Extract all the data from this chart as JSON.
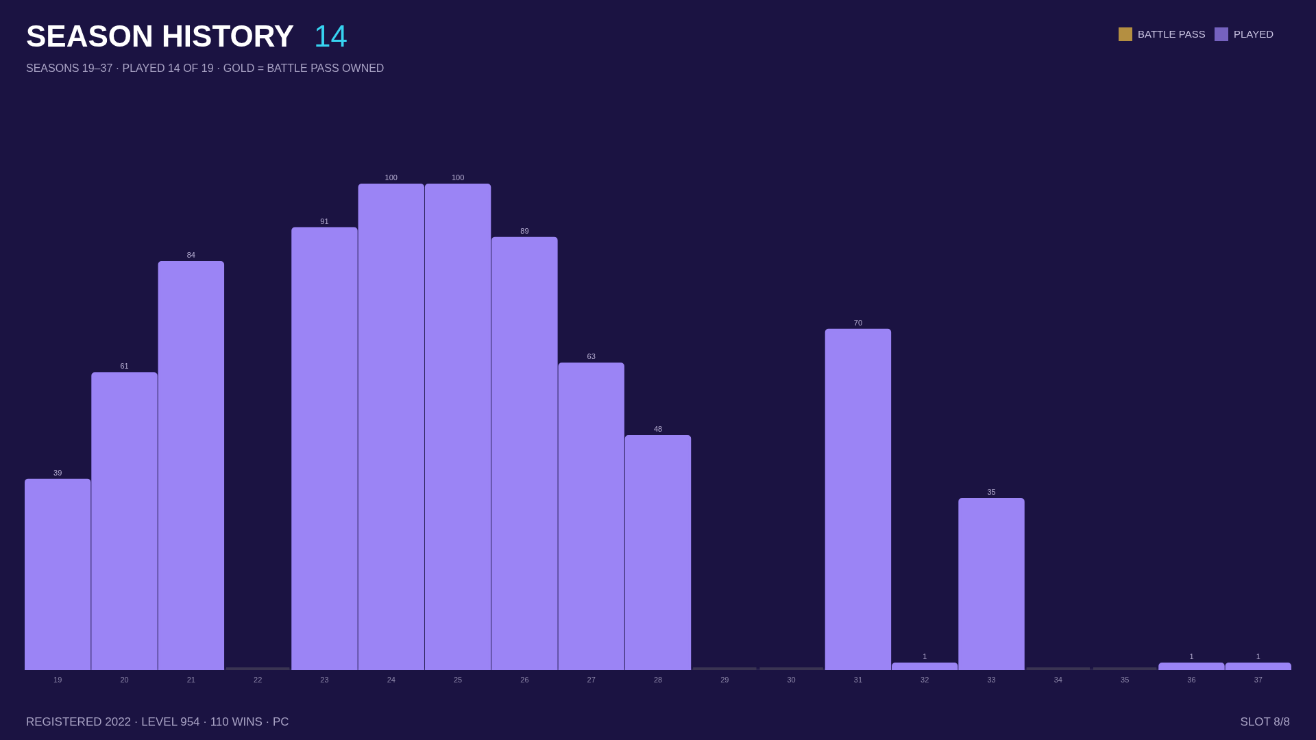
{
  "chart_data": {
    "type": "bar",
    "title": "SEASON HISTORY",
    "subtitle": "SEASONS 19–37 · PLAYED 14 OF 19 · GOLD = BATTLE PASS OWNED",
    "annotations": [
      "14",
      "REGISTERED 2022 · LEVEL 954 · 110 WINS · PC",
      "SLOT 8/8"
    ],
    "categories": [
      "19",
      "20",
      "21",
      "22",
      "23",
      "24",
      "25",
      "26",
      "27",
      "28",
      "29",
      "30",
      "31",
      "32",
      "33",
      "34",
      "35",
      "36",
      "37"
    ],
    "series": [
      {
        "name": "BATTLE PASS",
        "color": "#f5c542",
        "values": [
          null,
          null,
          null,
          null,
          null,
          null,
          null,
          null,
          null,
          null,
          null,
          null,
          null,
          null,
          null,
          null,
          null,
          null,
          null
        ]
      },
      {
        "name": "PLAYED",
        "color": "#9b84f5",
        "colors": [
          "#9b84f5",
          "#9b84f5",
          "#9b84f5",
          "#3a3452",
          "#9b84f5",
          "#9b84f5",
          "#9b84f5",
          "#9b84f5",
          "#9b84f5",
          "#9b84f5",
          "#3a3452",
          "#3a3452",
          "#9b84f5",
          "#9b84f5",
          "#9b84f5",
          "#3a3452",
          "#3a3452",
          "#9b84f5",
          "#9b84f5"
        ],
        "values": [
          39,
          61,
          84,
          0,
          91,
          100,
          100,
          89,
          63,
          48,
          0,
          0,
          70,
          1,
          35,
          0,
          0,
          1,
          1
        ],
        "value_labels": [
          "39",
          "61",
          "84",
          null,
          "91",
          "100",
          "100",
          "89",
          "63",
          "48",
          null,
          null,
          "70",
          "1",
          "35",
          null,
          null,
          "1",
          "1"
        ]
      }
    ],
    "ylim": [
      0,
      100
    ],
    "legend": "top right",
    "tick_labels": "x",
    "grid": false
  }
}
